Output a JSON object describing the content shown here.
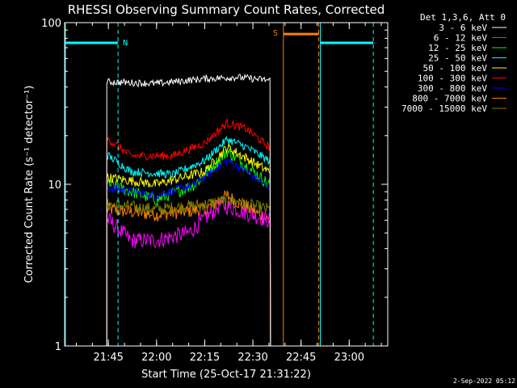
{
  "chart_data": {
    "type": "line",
    "title": "RHESSI Observing Summary Count Rates, Corrected",
    "xlabel": "Start Time (25-Oct-17 21:31:22)",
    "ylabel": "Corrected Count Rate (s⁻¹ detector⁻¹)",
    "yscale": "log",
    "ylim": [
      1,
      100
    ],
    "xlim": [
      "21:31:22",
      "23:12:00"
    ],
    "x_ticks": [
      "21:45",
      "22:00",
      "22:15",
      "22:30",
      "22:45",
      "23:00"
    ],
    "y_ticks": [
      "1",
      "10",
      "100"
    ],
    "legend_title": "Det 1,3,6, Att 0",
    "legend_position": "outside-right",
    "data_start": "21:44:30",
    "data_end": "22:35:30",
    "series": [
      {
        "name": "3 - 6 keV",
        "color": "#ffffff",
        "points": [
          [
            "21:45",
            43
          ],
          [
            "22:00",
            42
          ],
          [
            "22:15",
            45
          ],
          [
            "22:25",
            46
          ],
          [
            "22:35",
            44
          ]
        ]
      },
      {
        "name": "6 - 12 keV",
        "color": "#ff00ff",
        "points": [
          [
            "21:45",
            6
          ],
          [
            "21:52",
            4.5
          ],
          [
            "22:00",
            4.5
          ],
          [
            "22:10",
            5
          ],
          [
            "22:20",
            7.5
          ],
          [
            "22:25",
            7
          ],
          [
            "22:35",
            6
          ]
        ]
      },
      {
        "name": "12 - 25 keV",
        "color": "#00ff00",
        "points": [
          [
            "21:45",
            10
          ],
          [
            "22:00",
            8
          ],
          [
            "22:12",
            10
          ],
          [
            "22:22",
            16
          ],
          [
            "22:28",
            13
          ],
          [
            "22:35",
            10
          ]
        ]
      },
      {
        "name": "25 - 50 keV",
        "color": "#00ffff",
        "points": [
          [
            "21:45",
            15
          ],
          [
            "21:52",
            12
          ],
          [
            "22:05",
            11.5
          ],
          [
            "22:15",
            14
          ],
          [
            "22:22",
            19
          ],
          [
            "22:28",
            17
          ],
          [
            "22:35",
            14
          ]
        ]
      },
      {
        "name": "50 - 100 keV",
        "color": "#ffff00",
        "points": [
          [
            "21:45",
            11
          ],
          [
            "22:00",
            10
          ],
          [
            "22:15",
            12
          ],
          [
            "22:22",
            17
          ],
          [
            "22:35",
            12
          ]
        ]
      },
      {
        "name": "100 - 300 keV",
        "color": "#ff0000",
        "points": [
          [
            "21:45",
            19
          ],
          [
            "21:52",
            15
          ],
          [
            "22:05",
            15
          ],
          [
            "22:15",
            18
          ],
          [
            "22:22",
            24
          ],
          [
            "22:28",
            22
          ],
          [
            "22:35",
            17
          ]
        ]
      },
      {
        "name": "300 - 800 keV",
        "color": "#0000ff",
        "points": [
          [
            "21:45",
            9.5
          ],
          [
            "22:00",
            8.5
          ],
          [
            "22:12",
            10
          ],
          [
            "22:22",
            14
          ],
          [
            "22:28",
            12
          ],
          [
            "22:35",
            9.5
          ]
        ]
      },
      {
        "name": "800 - 7000 keV",
        "color": "#ff8000",
        "points": [
          [
            "21:45",
            7
          ],
          [
            "22:00",
            6.5
          ],
          [
            "22:15",
            7
          ],
          [
            "22:22",
            8.5
          ],
          [
            "22:35",
            6
          ]
        ]
      },
      {
        "name": "7000 - 15000 keV",
        "color": "#808000",
        "points": [
          [
            "21:45",
            7.5
          ],
          [
            "22:00",
            7
          ],
          [
            "22:15",
            7.5
          ],
          [
            "22:22",
            8
          ],
          [
            "22:35",
            7
          ]
        ]
      }
    ],
    "night_intervals": [
      {
        "label": "N",
        "color": "#00ffff",
        "start": "21:31:22",
        "end": "21:48:00",
        "level": 75
      },
      {
        "label": "",
        "color": "#00ffff",
        "start": "22:51:00",
        "end": "23:07:30",
        "level": 75
      }
    ],
    "saa_intervals": [
      {
        "label": "S",
        "color": "#ff8000",
        "start": "22:39:30",
        "end": "22:50:30",
        "level": 85
      }
    ]
  },
  "footer": {
    "timestamp": "2-Sep-2022 05:12"
  }
}
